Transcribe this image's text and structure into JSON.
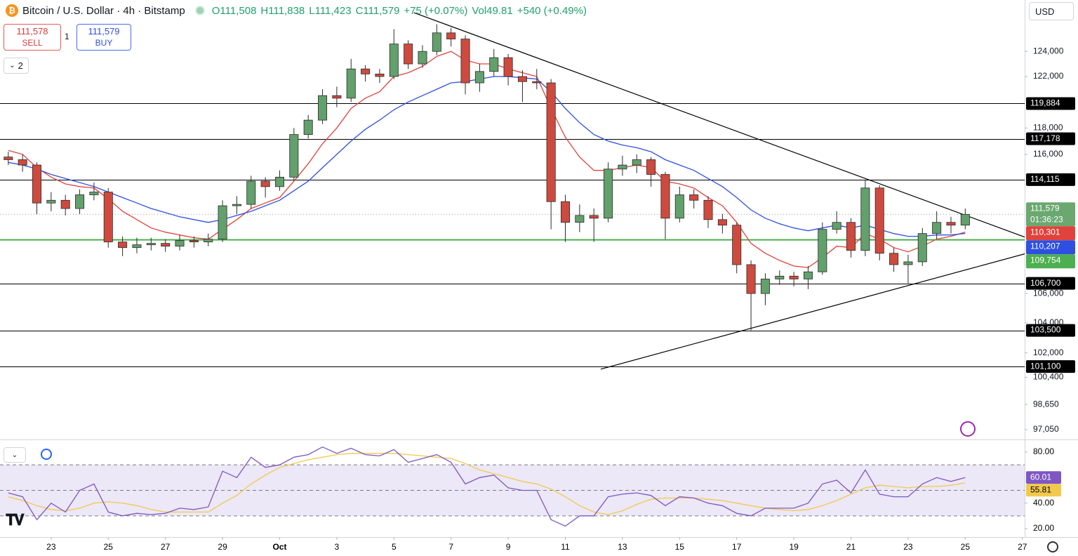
{
  "header": {
    "title": "Bitcoin / U.S. Dollar · 4h · Bitstamp",
    "open": "O111,508",
    "high": "H111,838",
    "low": "L111,423",
    "close": "C111,579",
    "change": "+75 (+0.07%)",
    "volume": "Vol49.81",
    "volume_change": "+540 (+0.49%)"
  },
  "trade": {
    "sell_price": "111,578",
    "sell_label": "SELL",
    "spread": "1",
    "buy_price": "111,579",
    "buy_label": "BUY"
  },
  "indicators_count": "2",
  "currency": "USD",
  "chart_data": [
    {
      "type": "candlestick",
      "log_scale": true,
      "up_color": "#62a06c",
      "down_color": "#cf4a3e",
      "wick_color": "#2b2b2b",
      "x": [
        -1.5,
        -1,
        -0.5,
        0,
        0.5,
        1,
        1.5,
        2,
        2.5,
        3,
        3.5,
        4,
        4.5,
        5,
        5.5,
        6,
        6.5,
        7,
        7.5,
        8,
        8.5,
        9,
        9.5,
        10,
        10.5,
        11,
        11.5,
        12,
        12.5,
        13,
        13.5,
        14,
        14.5,
        15,
        15.5,
        16,
        16.5,
        17,
        17.5,
        18,
        18.5,
        19,
        19.5,
        20,
        20.5,
        21,
        21.5,
        22,
        22.5,
        23,
        23.5,
        24,
        24.5,
        25,
        25.5,
        26,
        26.5,
        27,
        27.5,
        28,
        28.5,
        29,
        29.5,
        30,
        30.5,
        31,
        31.5,
        32
      ],
      "open": [
        115800,
        115600,
        115200,
        112400,
        112600,
        112000,
        113000,
        113200,
        109600,
        109200,
        109400,
        109500,
        109300,
        109700,
        109600,
        109800,
        112200,
        112300,
        114000,
        113600,
        114300,
        117500,
        118600,
        120500,
        120300,
        122600,
        122200,
        122000,
        124600,
        123000,
        124000,
        125500,
        125000,
        121500,
        122400,
        123500,
        122000,
        121600,
        121500,
        112500,
        111000,
        111500,
        111300,
        114900,
        115200,
        115600,
        114500,
        111300,
        113000,
        112600,
        111200,
        110800,
        108000,
        106000,
        107000,
        107200,
        107000,
        107500,
        110500,
        111000,
        109000,
        113500,
        108800,
        108000,
        108200,
        110200,
        111000,
        110800
      ],
      "high": [
        116200,
        116000,
        115400,
        113200,
        113000,
        113400,
        113900,
        113500,
        110000,
        109900,
        109900,
        109800,
        110100,
        110000,
        110200,
        112600,
        112900,
        114400,
        114300,
        114800,
        118000,
        119000,
        121000,
        121200,
        123400,
        122900,
        122600,
        125800,
        124900,
        124500,
        126200,
        125900,
        125300,
        123000,
        124200,
        123800,
        122500,
        122600,
        121800,
        113000,
        112300,
        112000,
        115400,
        115900,
        116000,
        115800,
        114700,
        113600,
        113400,
        112900,
        111600,
        111000,
        108300,
        107400,
        107600,
        107500,
        107900,
        111000,
        111800,
        111300,
        114100,
        113700,
        109200,
        108700,
        110600,
        111800,
        111400,
        112000
      ],
      "low": [
        115200,
        114700,
        111600,
        111800,
        111500,
        111600,
        112600,
        109200,
        108600,
        108800,
        109000,
        108900,
        109000,
        109200,
        109300,
        109600,
        111600,
        112000,
        112800,
        113300,
        114000,
        117200,
        118300,
        119600,
        120000,
        121600,
        121500,
        121800,
        122600,
        122700,
        123700,
        124400,
        120600,
        120800,
        122000,
        121300,
        120000,
        121000,
        110500,
        109600,
        110300,
        109600,
        111000,
        114400,
        114600,
        113600,
        109800,
        111000,
        112000,
        110600,
        110200,
        107400,
        103500,
        105200,
        106600,
        106500,
        106300,
        107300,
        110200,
        108500,
        108600,
        108300,
        107500,
        106700,
        107900,
        109800,
        110200,
        110500
      ],
      "close": [
        115600,
        115200,
        112400,
        112600,
        112000,
        113000,
        113200,
        109600,
        109200,
        109400,
        109500,
        109300,
        109700,
        109600,
        109800,
        112200,
        112300,
        114000,
        113600,
        114300,
        117500,
        118600,
        120500,
        120300,
        122600,
        122200,
        122000,
        124600,
        123000,
        124000,
        125500,
        125000,
        121500,
        122400,
        123500,
        122000,
        121600,
        121500,
        112500,
        111000,
        111500,
        111300,
        114900,
        115200,
        115600,
        114500,
        111300,
        113000,
        112600,
        111200,
        110800,
        108000,
        106000,
        107000,
        107200,
        107000,
        107500,
        110500,
        111000,
        109000,
        113500,
        108800,
        108000,
        108200,
        110200,
        111000,
        110800,
        111579
      ],
      "close_label": "111,579",
      "countdown": "01:36:23",
      "last_color": "#6aa870",
      "series": [
        {
          "color": "#e0433b",
          "end_label": "110,301",
          "values": [
            116300,
            116000,
            115000,
            114300,
            113800,
            113600,
            113500,
            112700,
            111800,
            111200,
            110600,
            110300,
            110100,
            109900,
            109800,
            110500,
            111200,
            112000,
            112400,
            112800,
            114000,
            115300,
            116800,
            118000,
            119500,
            120300,
            120800,
            122000,
            122300,
            122800,
            123600,
            124000,
            123300,
            123000,
            123000,
            122600,
            122300,
            122000,
            119500,
            117300,
            115800,
            114800,
            114800,
            115000,
            115200,
            115000,
            114000,
            113800,
            113500,
            112800,
            112200,
            111000,
            109500,
            108800,
            108300,
            107900,
            107800,
            108500,
            109300,
            109200,
            110200,
            109800,
            109200,
            108900,
            109300,
            109800,
            110000,
            110301
          ]
        },
        {
          "color": "#2f4fe0",
          "end_label": "110,207",
          "values": [
            115400,
            115200,
            114900,
            114500,
            114200,
            113900,
            113600,
            113200,
            112800,
            112400,
            112000,
            111700,
            111400,
            111200,
            111000,
            111200,
            111500,
            111800,
            112200,
            112600,
            113300,
            114000,
            115000,
            116000,
            117000,
            117900,
            118600,
            119400,
            120000,
            120500,
            121000,
            121500,
            121600,
            121800,
            122000,
            122000,
            121900,
            121800,
            120800,
            119500,
            118400,
            117500,
            117000,
            116700,
            116500,
            116200,
            115600,
            115200,
            114800,
            114200,
            113600,
            112800,
            111900,
            111300,
            110900,
            110600,
            110400,
            110600,
            110800,
            110600,
            110800,
            110500,
            110200,
            110000,
            110000,
            110100,
            110100,
            110207
          ]
        }
      ],
      "levels": [
        {
          "value": 119884,
          "label": "119,884"
        },
        {
          "value": 117178,
          "label": "117,178"
        },
        {
          "value": 114115,
          "label": "114,115"
        },
        {
          "value": 106700,
          "label": "106,700"
        },
        {
          "value": 103500,
          "label": "103,500"
        },
        {
          "value": 101100,
          "label": "101,100"
        }
      ],
      "support": {
        "value": 109754,
        "label": "109,754",
        "color": "#4caf50"
      },
      "trendlines": [
        {
          "x": [
            12.7,
            34.08
          ],
          "values": [
            127150,
            109950
          ]
        },
        {
          "x": [
            19.24,
            34.08
          ],
          "values": [
            100930,
            108760
          ]
        }
      ],
      "xlim": [
        -1.79,
        34.08
      ],
      "xticks": [
        {
          "value": 0,
          "label": "23"
        },
        {
          "value": 2,
          "label": "25"
        },
        {
          "value": 4,
          "label": "27"
        },
        {
          "value": 6,
          "label": "29"
        },
        {
          "value": 8,
          "label": "Oct"
        },
        {
          "value": 10,
          "label": "3"
        },
        {
          "value": 12,
          "label": "5"
        },
        {
          "value": 14,
          "label": "7"
        },
        {
          "value": 16,
          "label": "9"
        },
        {
          "value": 18,
          "label": "11"
        },
        {
          "value": 20,
          "label": "13"
        },
        {
          "value": 22,
          "label": "15"
        },
        {
          "value": 24,
          "label": "17"
        },
        {
          "value": 26,
          "label": "19"
        },
        {
          "value": 28,
          "label": "21"
        },
        {
          "value": 30,
          "label": "23"
        },
        {
          "value": 32,
          "label": "25"
        },
        {
          "value": 34,
          "label": "27"
        }
      ],
      "ylim": [
        96480,
        128200
      ],
      "yticks": [
        {
          "value": 124000,
          "label": "124,000"
        },
        {
          "value": 122000,
          "label": "122,000"
        },
        {
          "value": 118000,
          "label": "118,000"
        },
        {
          "value": 116000,
          "label": "116,000"
        },
        {
          "value": 106000,
          "label": "106,000"
        },
        {
          "value": 104000,
          "label": "104,000"
        },
        {
          "value": 102000,
          "label": "102,000"
        },
        {
          "value": 100400,
          "label": "100,400"
        },
        {
          "value": 98650,
          "label": "98,650"
        },
        {
          "value": 97050,
          "label": "97,050"
        }
      ]
    },
    {
      "type": "line",
      "ylim": [
        13.4,
        88.8
      ],
      "yticks": [
        {
          "value": 80,
          "label": "80.00"
        },
        {
          "value": 40,
          "label": "40.00"
        },
        {
          "value": 20,
          "label": "20.00"
        }
      ],
      "levels": [
        70,
        50,
        30
      ],
      "band_color": "#ece8f7",
      "series": [
        {
          "color": "#7e57c2",
          "label_text_color": "#ffffff",
          "values": [
            48,
            45,
            27,
            40,
            33,
            50,
            55,
            33,
            30,
            32,
            31,
            32,
            36,
            35,
            37,
            65,
            60,
            76,
            68,
            70,
            76,
            78,
            84,
            79,
            83,
            78,
            77,
            82,
            72,
            75,
            78,
            72,
            55,
            60,
            62,
            52,
            50,
            50,
            27,
            22,
            30,
            30,
            45,
            47,
            48,
            46,
            38,
            45,
            44,
            40,
            38,
            32,
            30,
            36,
            36,
            36,
            40,
            55,
            58,
            48,
            66,
            47,
            45,
            45,
            55,
            60,
            57,
            60.01
          ]
        },
        {
          "color": "#f2c94c",
          "label_text_color": "#000000",
          "values": [
            45,
            42,
            38,
            35,
            34,
            36,
            40,
            41,
            40,
            38,
            35,
            33,
            33,
            33,
            33,
            40,
            46,
            55,
            62,
            68,
            71,
            74,
            76,
            78,
            79,
            79,
            79,
            79,
            78,
            77,
            76,
            75,
            71,
            66,
            63,
            60,
            57,
            55,
            51,
            45,
            38,
            33,
            31,
            34,
            39,
            43,
            44,
            44,
            44,
            43,
            42,
            40,
            38,
            36,
            35,
            34,
            35,
            38,
            42,
            47,
            52,
            54,
            53,
            52,
            53,
            53,
            54,
            55.81
          ]
        }
      ]
    }
  ]
}
